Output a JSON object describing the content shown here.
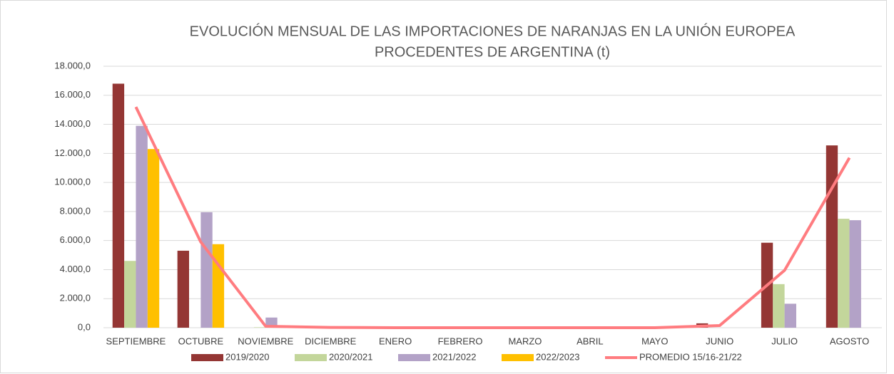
{
  "chart_data": {
    "type": "bar",
    "title": "EVOLUCIÓN MENSUAL DE LAS IMPORTACIONES DE NARANJAS EN LA UNIÓN EUROPEA",
    "subtitle": "PROCEDENTES DE ARGENTINA (t)",
    "categories": [
      "SEPTIEMBRE",
      "OCTUBRE",
      "NOVIEMBRE",
      "DICIEMBRE",
      "ENERO",
      "FEBRERO",
      "MARZO",
      "ABRIL",
      "MAYO",
      "JUNIO",
      "JULIO",
      "AGOSTO"
    ],
    "series": [
      {
        "name": "2019/2020",
        "color": "#943634",
        "type": "bar",
        "values": [
          16800,
          5300,
          0,
          0,
          0,
          0,
          0,
          0,
          0,
          300,
          5850,
          12550
        ]
      },
      {
        "name": "2020/2021",
        "color": "#c3d69b",
        "type": "bar",
        "values": [
          4600,
          0,
          30,
          0,
          0,
          0,
          0,
          0,
          0,
          0,
          3000,
          7500
        ]
      },
      {
        "name": "2021/2022",
        "color": "#b3a2c7",
        "type": "bar",
        "values": [
          13900,
          7950,
          700,
          0,
          0,
          0,
          0,
          0,
          0,
          0,
          1650,
          7400
        ]
      },
      {
        "name": "2022/2023",
        "color": "#ffc000",
        "type": "bar",
        "values": [
          12300,
          5750,
          null,
          null,
          null,
          null,
          null,
          null,
          null,
          null,
          null,
          null
        ]
      },
      {
        "name": "PROMEDIO 15/16-21/22",
        "color": "#ff7c80",
        "type": "line",
        "values": [
          15200,
          5900,
          100,
          20,
          0,
          0,
          0,
          0,
          0,
          150,
          3950,
          11700
        ]
      }
    ],
    "ylim": [
      0,
      18000
    ],
    "yticks": [
      {
        "value": 0,
        "label": "0,0"
      },
      {
        "value": 2000,
        "label": "2.000,0"
      },
      {
        "value": 4000,
        "label": "4.000,0"
      },
      {
        "value": 6000,
        "label": "6.000,0"
      },
      {
        "value": 8000,
        "label": "8.000,0"
      },
      {
        "value": 10000,
        "label": "10.000,0"
      },
      {
        "value": 12000,
        "label": "12.000,0"
      },
      {
        "value": 14000,
        "label": "14.000,0"
      },
      {
        "value": 16000,
        "label": "16.000,0"
      },
      {
        "value": 18000,
        "label": "18.000,0"
      }
    ],
    "grid": true,
    "legend": "bottom"
  }
}
